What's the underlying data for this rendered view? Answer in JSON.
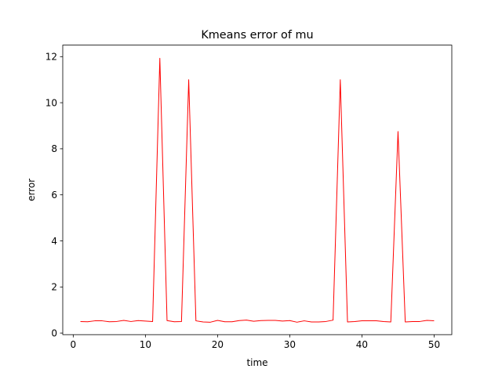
{
  "chart_data": {
    "type": "line",
    "title": "Kmeans error of mu",
    "xlabel": "time",
    "ylabel": "error",
    "xlim": [
      -1.45,
      52.45
    ],
    "ylim": [
      -0.07,
      12.5
    ],
    "x_ticks": [
      0,
      10,
      20,
      30,
      40,
      50
    ],
    "y_ticks": [
      0,
      2,
      4,
      6,
      8,
      10,
      12
    ],
    "grid": false,
    "series": [
      {
        "color": "#ff0000",
        "x": [
          1,
          2,
          3,
          4,
          5,
          6,
          7,
          8,
          9,
          10,
          11,
          12,
          13,
          14,
          15,
          16,
          17,
          18,
          19,
          20,
          21,
          22,
          23,
          24,
          25,
          26,
          27,
          28,
          29,
          30,
          31,
          32,
          33,
          34,
          35,
          36,
          37,
          38,
          39,
          40,
          41,
          42,
          43,
          44,
          45,
          46,
          47,
          48,
          49,
          50
        ],
        "values": [
          0.5,
          0.49,
          0.53,
          0.53,
          0.49,
          0.5,
          0.55,
          0.5,
          0.54,
          0.52,
          0.5,
          11.93,
          0.54,
          0.49,
          0.5,
          11.0,
          0.53,
          0.48,
          0.47,
          0.55,
          0.49,
          0.49,
          0.54,
          0.56,
          0.51,
          0.54,
          0.55,
          0.55,
          0.52,
          0.54,
          0.47,
          0.53,
          0.48,
          0.48,
          0.5,
          0.56,
          11.0,
          0.48,
          0.5,
          0.53,
          0.53,
          0.53,
          0.5,
          0.48,
          8.75,
          0.48,
          0.5,
          0.5,
          0.55,
          0.53
        ]
      }
    ]
  }
}
